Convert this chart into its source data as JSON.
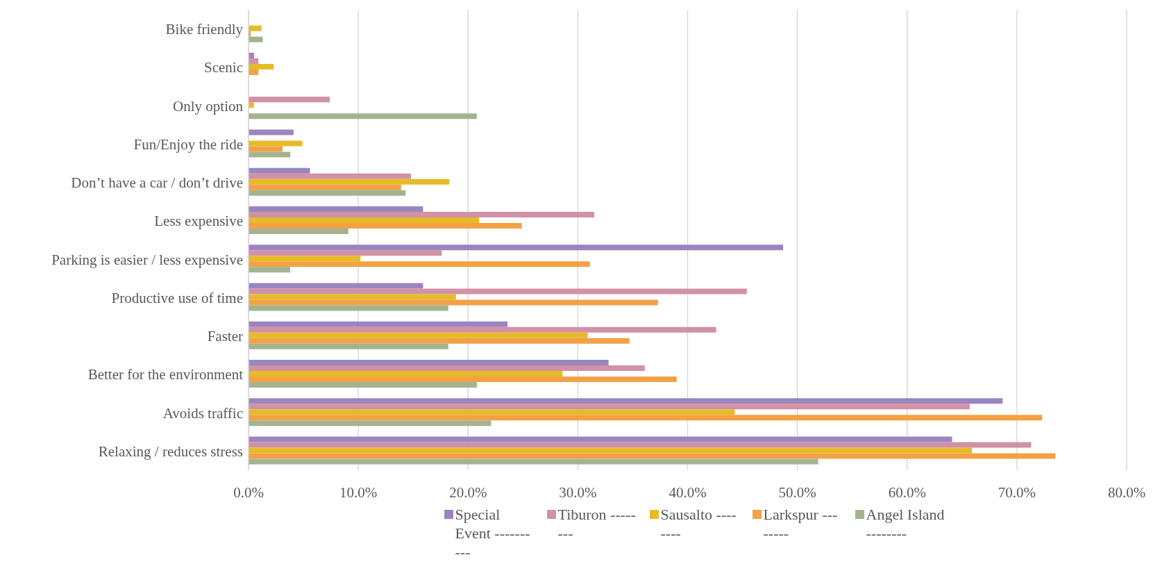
{
  "chart_data": {
    "type": "bar",
    "orientation": "horizontal",
    "categories": [
      "Bike friendly",
      "Scenic",
      "Only option",
      "Fun/Enjoy the ride",
      "Don’t have a car / don’t drive",
      "Less expensive",
      "Parking is easier / less expensive",
      "Productive use of time",
      "Faster",
      "Better for the environment",
      "Avoids traffic",
      "Relaxing / reduces stress"
    ],
    "series": [
      {
        "name": "Special Event ----------",
        "color": "#9b85c0",
        "values": [
          0,
          0.5,
          0,
          4.1,
          5.6,
          15.9,
          48.7,
          15.9,
          23.6,
          32.8,
          68.7,
          64.1
        ]
      },
      {
        "name": "Tiburon --------",
        "color": "#d191a6",
        "values": [
          0,
          0.9,
          7.4,
          0,
          14.8,
          31.5,
          17.6,
          45.4,
          42.6,
          36.1,
          65.7,
          71.3
        ]
      },
      {
        "name": "Sausalto --------",
        "color": "#e6bb27",
        "values": [
          1.2,
          2.3,
          0.5,
          4.9,
          18.3,
          21.0,
          10.2,
          18.9,
          30.9,
          28.6,
          44.3,
          65.9
        ]
      },
      {
        "name": "Larkspur --------",
        "color": "#f2a145",
        "values": [
          0.2,
          0.9,
          0,
          3.1,
          13.9,
          24.9,
          31.1,
          37.3,
          34.7,
          39.0,
          72.3,
          73.5
        ]
      },
      {
        "name": "Angel Island --------",
        "color": "#a4b38f",
        "values": [
          1.3,
          0,
          20.8,
          3.8,
          14.3,
          9.1,
          3.8,
          18.2,
          18.2,
          20.8,
          22.1,
          51.9
        ]
      }
    ],
    "xlim": [
      0,
      80
    ],
    "xticks": [
      {
        "value": 0,
        "label": "0.0%"
      },
      {
        "value": 10,
        "label": "10.0%"
      },
      {
        "value": 20,
        "label": "20.0%"
      },
      {
        "value": 30,
        "label": "30.0%"
      },
      {
        "value": 40,
        "label": "40.0%"
      },
      {
        "value": 50,
        "label": "50.0%"
      },
      {
        "value": 60,
        "label": "60.0%"
      },
      {
        "value": 70,
        "label": "70.0%"
      },
      {
        "value": 80,
        "label": "80.0%"
      }
    ],
    "grid": "x",
    "legend": "bottom"
  }
}
